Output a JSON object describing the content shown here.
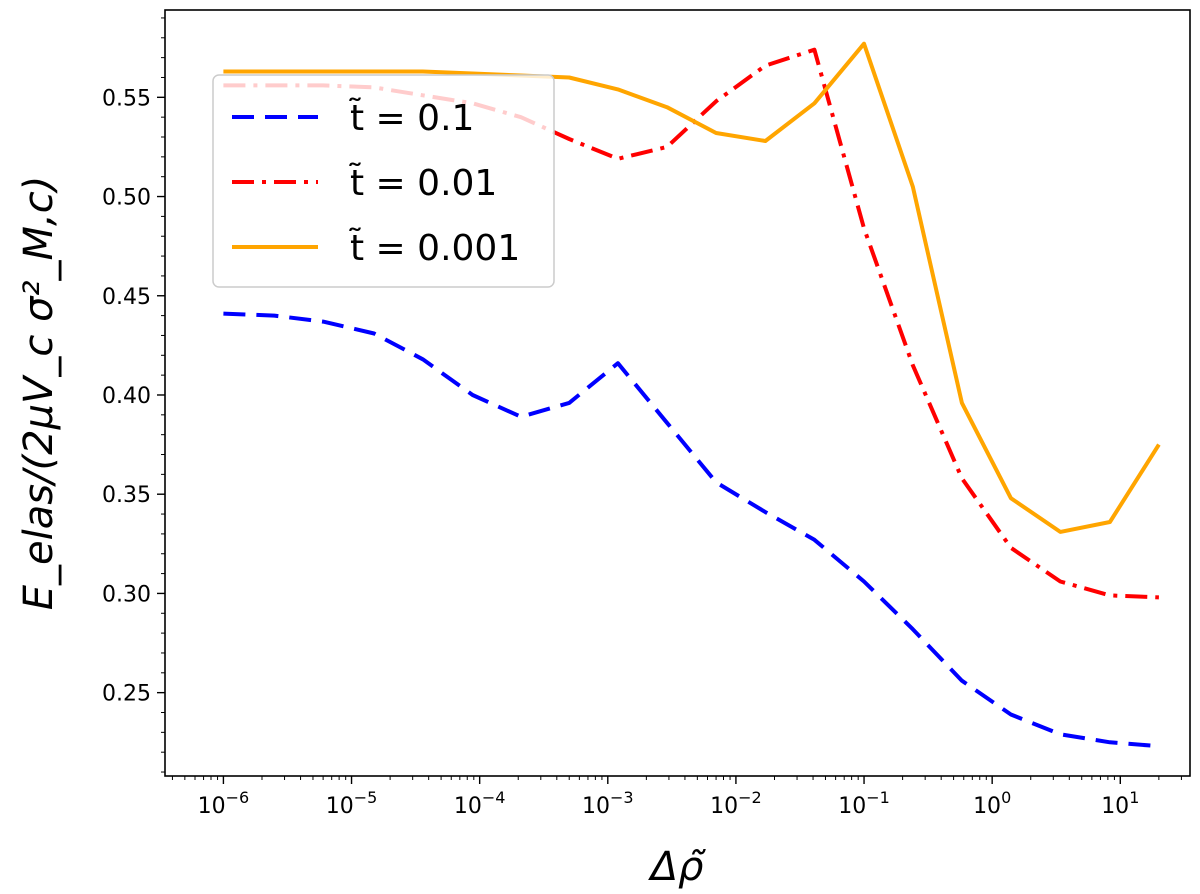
{
  "chart_data": {
    "type": "line",
    "xscale": "log",
    "xlim": [
      3.5e-07,
      35
    ],
    "ylim": [
      0.208,
      0.594
    ],
    "x_ticks": [
      {
        "value": 1e-06,
        "base": "10",
        "exp": "−6"
      },
      {
        "value": 1e-05,
        "base": "10",
        "exp": "−5"
      },
      {
        "value": 0.0001,
        "base": "10",
        "exp": "−4"
      },
      {
        "value": 0.001,
        "base": "10",
        "exp": "−3"
      },
      {
        "value": 0.01,
        "base": "10",
        "exp": "−2"
      },
      {
        "value": 0.1,
        "base": "10",
        "exp": "−1"
      },
      {
        "value": 1,
        "base": "10",
        "exp": "0"
      },
      {
        "value": 10,
        "base": "10",
        "exp": "1"
      }
    ],
    "y_ticks": [
      {
        "value": 0.25,
        "label": "0.25"
      },
      {
        "value": 0.3,
        "label": "0.30"
      },
      {
        "value": 0.35,
        "label": "0.35"
      },
      {
        "value": 0.4,
        "label": "0.40"
      },
      {
        "value": 0.45,
        "label": "0.45"
      },
      {
        "value": 0.5,
        "label": "0.50"
      },
      {
        "value": 0.55,
        "label": "0.55"
      }
    ],
    "xlabel": "Δρ̃",
    "ylabel": "E_elas/(2μV_c σ²_M,c)",
    "legend_position": "upper-left",
    "grid": false,
    "x": [
      1e-06,
      2.5e-06,
      6e-06,
      1.5e-05,
      3.6e-05,
      8.8e-05,
      0.00021,
      0.0005,
      0.0012,
      0.0029,
      0.007,
      0.017,
      0.041,
      0.1,
      0.24,
      0.58,
      1.4,
      3.4,
      8.3,
      20
    ],
    "series": [
      {
        "name": "t̃ = 0.1",
        "color": "#0000ff",
        "dash": "dashed",
        "values": [
          0.441,
          0.44,
          0.437,
          0.431,
          0.418,
          0.4,
          0.389,
          0.396,
          0.416,
          0.386,
          0.356,
          0.341,
          0.327,
          0.306,
          0.282,
          0.256,
          0.239,
          0.229,
          0.225,
          0.223
        ]
      },
      {
        "name": "t̃ = 0.01",
        "color": "#ff0000",
        "dash": "dashdot",
        "values": [
          0.556,
          0.556,
          0.556,
          0.555,
          0.551,
          0.547,
          0.54,
          0.529,
          0.519,
          0.525,
          0.548,
          0.566,
          0.574,
          0.484,
          0.415,
          0.358,
          0.323,
          0.306,
          0.299,
          0.298
        ]
      },
      {
        "name": "t̃ = 0.001",
        "color": "#ffa500",
        "dash": "solid",
        "values": [
          0.563,
          0.563,
          0.563,
          0.563,
          0.563,
          0.562,
          0.561,
          0.56,
          0.554,
          0.545,
          0.532,
          0.528,
          0.547,
          0.577,
          0.505,
          0.396,
          0.348,
          0.331,
          0.336,
          0.375
        ]
      }
    ]
  }
}
